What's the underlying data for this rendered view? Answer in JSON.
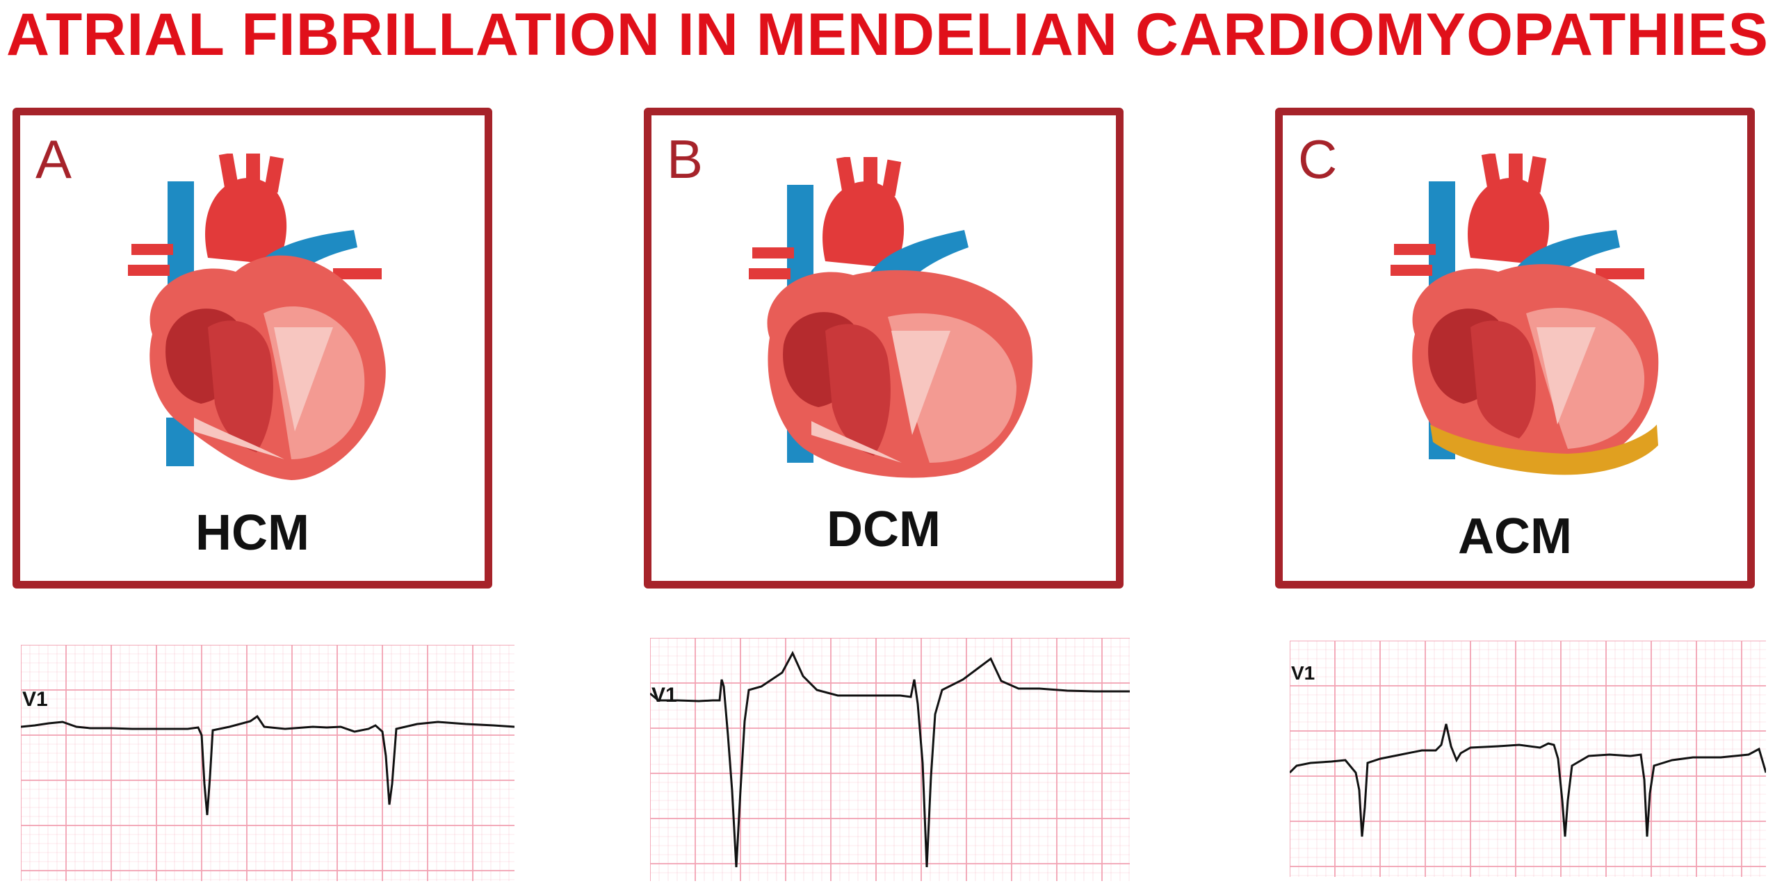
{
  "title": "ATRIAL FIBRILLATION IN MENDELIAN CARDIOMYOPATHIES",
  "colors": {
    "title": "#e0101a",
    "frame": "#a6232a",
    "myocardium": "#e85d57",
    "chamber": "#b52b2e",
    "vein": "#1e8bc3",
    "artery": "#e23a3a",
    "fat": "#e0a020",
    "ecg_grid": "#f2a3b3",
    "ecg_trace": "#111111"
  },
  "panels": [
    {
      "letter": "A",
      "label": "HCM",
      "ecg_lead": "V1",
      "icon": "hcm-heart-icon"
    },
    {
      "letter": "B",
      "label": "DCM",
      "ecg_lead": "V1",
      "icon": "dcm-heart-icon"
    },
    {
      "letter": "C",
      "label": "ACM",
      "ecg_lead": "V1",
      "icon": "acm-heart-icon"
    }
  ]
}
